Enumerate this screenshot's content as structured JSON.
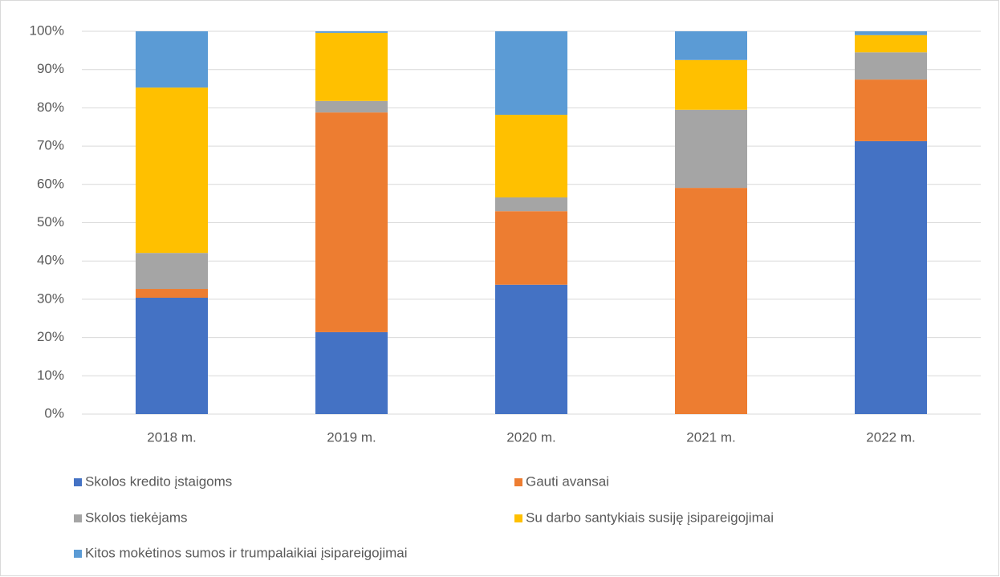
{
  "chart_data": {
    "type": "stacked_bar",
    "categories": [
      "2018 m.",
      "2019 m.",
      "2020 m.",
      "2021 m.",
      "2022 m."
    ],
    "series": [
      {
        "name": "Skolos kredito įstaigoms",
        "color": "#4472c4",
        "values": [
          30.4,
          21.4,
          33.8,
          0,
          71.3
        ]
      },
      {
        "name": "Gauti avansai",
        "color": "#ed7d31",
        "values": [
          2.3,
          57.4,
          19.2,
          59.1,
          16.1
        ]
      },
      {
        "name": "Skolos tiekėjams",
        "color": "#a5a5a5",
        "values": [
          9.4,
          3.0,
          3.6,
          20.4,
          7.1
        ]
      },
      {
        "name": "Su darbo santykiais susiję įsipareigojimai",
        "color": "#ffc000",
        "values": [
          43.2,
          17.8,
          21.6,
          13.0,
          4.5
        ]
      },
      {
        "name": "Kitos mokėtinos sumos ir trumpalaikiai įsipareigojimai",
        "color": "#5b9bd5",
        "values": [
          14.7,
          0.4,
          21.8,
          7.5,
          1.0
        ]
      }
    ],
    "ylim": [
      0,
      100
    ],
    "yticks": [
      {
        "value": 0,
        "label": "0%"
      },
      {
        "value": 10,
        "label": "10%"
      },
      {
        "value": 20,
        "label": "20%"
      },
      {
        "value": 30,
        "label": "30%"
      },
      {
        "value": 40,
        "label": "40%"
      },
      {
        "value": 50,
        "label": "50%"
      },
      {
        "value": 60,
        "label": "60%"
      },
      {
        "value": 70,
        "label": "70%"
      },
      {
        "value": 80,
        "label": "80%"
      },
      {
        "value": 90,
        "label": "90%"
      },
      {
        "value": 100,
        "label": "100%"
      }
    ],
    "grid": true
  }
}
